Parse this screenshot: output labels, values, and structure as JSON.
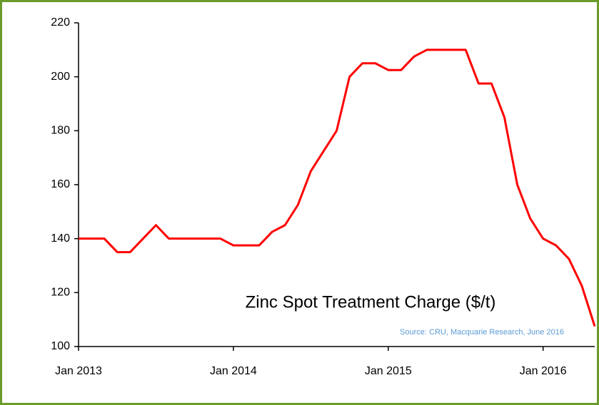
{
  "chart_data": {
    "type": "line",
    "title": "Zinc Spot Treatment Charge ($/t)",
    "source": "Source: CRU, Macquarie Research, June 2016",
    "x": [
      "2013-01",
      "2013-02",
      "2013-03",
      "2013-04",
      "2013-05",
      "2013-06",
      "2013-07",
      "2013-08",
      "2013-09",
      "2013-10",
      "2013-11",
      "2013-12",
      "2014-01",
      "2014-02",
      "2014-03",
      "2014-04",
      "2014-05",
      "2014-06",
      "2014-07",
      "2014-08",
      "2014-09",
      "2014-10",
      "2014-11",
      "2014-12",
      "2015-01",
      "2015-02",
      "2015-03",
      "2015-04",
      "2015-05",
      "2015-06",
      "2015-07",
      "2015-08",
      "2015-09",
      "2015-10",
      "2015-11",
      "2015-12",
      "2016-01",
      "2016-02",
      "2016-03",
      "2016-04",
      "2016-05"
    ],
    "series": [
      {
        "name": "Zinc Spot Treatment Charge",
        "color": "#ff0000",
        "values": [
          140,
          140,
          140,
          135,
          135,
          140,
          145,
          140,
          140,
          140,
          140,
          140,
          137.5,
          137.5,
          137.5,
          142.5,
          145,
          152.5,
          165,
          172.5,
          180,
          200,
          205,
          205,
          202.5,
          202.5,
          207.5,
          210,
          210,
          210,
          210,
          197.5,
          197.5,
          185,
          160,
          147.5,
          140,
          137.5,
          132.5,
          122.5,
          107.5
        ]
      }
    ],
    "xlim": [
      "2013-01",
      "2016-05"
    ],
    "xticks": [
      {
        "value": "2013-01",
        "label": "Jan 2013"
      },
      {
        "value": "2014-01",
        "label": "Jan 2014"
      },
      {
        "value": "2015-01",
        "label": "Jan 2015"
      },
      {
        "value": "2016-01",
        "label": "Jan 2016"
      }
    ],
    "ylim": [
      100,
      220
    ],
    "yticks": [
      100,
      120,
      140,
      160,
      180,
      200,
      220
    ]
  }
}
